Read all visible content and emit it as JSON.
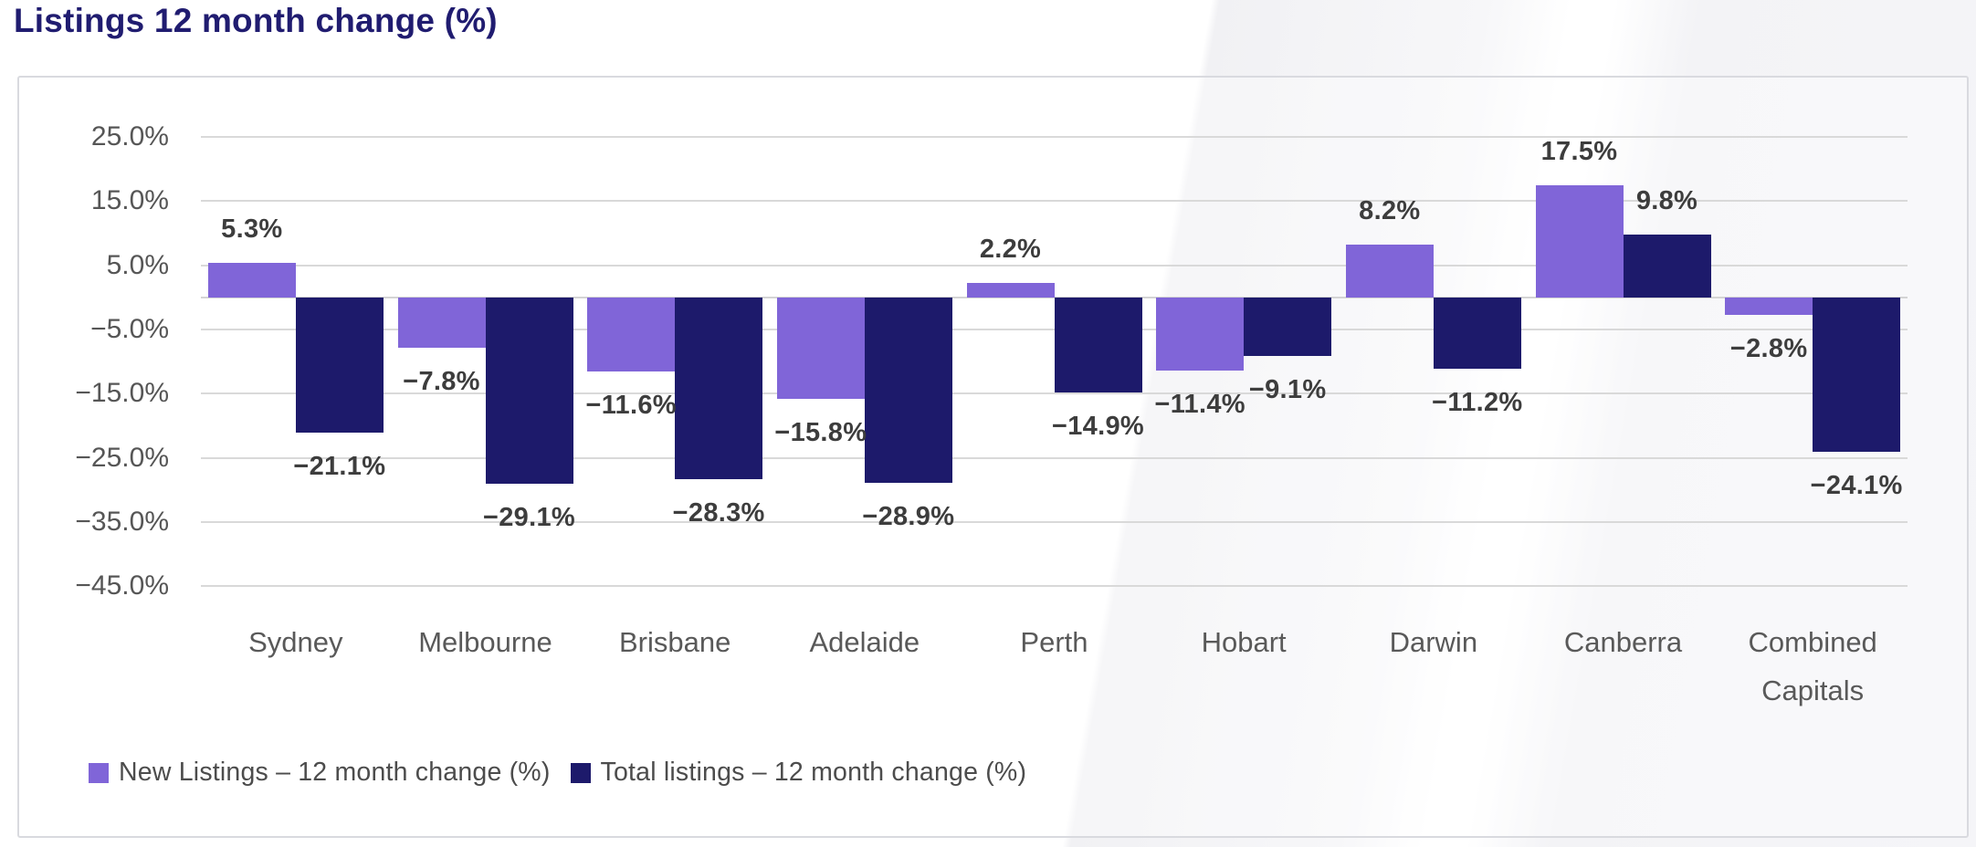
{
  "page_title": "Listings 12 month change (%)",
  "title_color": "#201C70",
  "chart_data": {
    "type": "bar",
    "title": "Listings 12 month change (%)",
    "categories": [
      "Sydney",
      "Melbourne",
      "Brisbane",
      "Adelaide",
      "Perth",
      "Hobart",
      "Darwin",
      "Canberra",
      "Combined Capitals"
    ],
    "series": [
      {
        "name": "New Listings – 12 month change (%)",
        "color": "#8065D8",
        "values": [
          5.3,
          -7.8,
          -11.6,
          -15.8,
          2.2,
          -11.4,
          8.2,
          17.5,
          -2.8
        ],
        "labels": [
          "5.3%",
          "−7.8%",
          "−11.6%",
          "−15.8%",
          "2.2%",
          "−11.4%",
          "8.2%",
          "17.5%",
          "−2.8%"
        ]
      },
      {
        "name": "Total listings – 12 month change (%)",
        "color": "#1D1A6B",
        "values": [
          -21.1,
          -29.1,
          -28.3,
          -28.9,
          -14.9,
          -9.1,
          -11.2,
          9.8,
          -24.1
        ],
        "labels": [
          "−21.1%",
          "−29.1%",
          "−28.3%",
          "−28.9%",
          "−14.9%",
          "−9.1%",
          "−11.2%",
          "9.8%",
          "−24.1%"
        ]
      }
    ],
    "y_ticks": [
      "25.0%",
      "15.0%",
      "5.0%",
      "−5.0%",
      "−15.0%",
      "−25.0%",
      "−35.0%",
      "−45.0%"
    ],
    "y_tick_values": [
      25,
      15,
      5,
      -5,
      -15,
      -25,
      -35,
      -45
    ],
    "ylim": [
      -45,
      25
    ],
    "grid": true,
    "legend_position": "bottom-left",
    "gridline_color": "#d9d9d9",
    "label_color": "#3d3d3d",
    "axis_text_color": "#565656"
  }
}
